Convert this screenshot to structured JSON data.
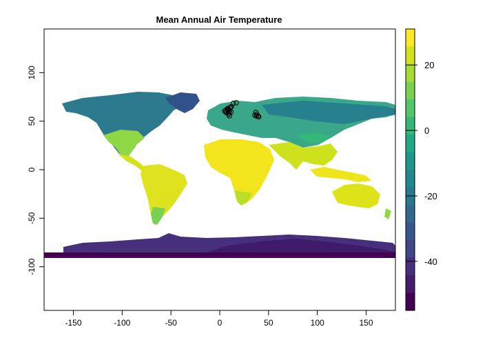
{
  "title": "Mean Annual Air Temperature",
  "map": {
    "xlim": [
      -180,
      180
    ],
    "ylim": [
      -145,
      145
    ],
    "x_ticks": [
      {
        "value": -150,
        "label": "-150"
      },
      {
        "value": -100,
        "label": "-100"
      },
      {
        "value": -50,
        "label": "-50"
      },
      {
        "value": 0,
        "label": "0"
      },
      {
        "value": 50,
        "label": "50"
      },
      {
        "value": 100,
        "label": "100"
      },
      {
        "value": 150,
        "label": "150"
      }
    ],
    "y_ticks": [
      {
        "value": 100,
        "label": "100"
      },
      {
        "value": 50,
        "label": "50"
      },
      {
        "value": 0,
        "label": "0"
      },
      {
        "value": -50,
        "label": "-50"
      },
      {
        "value": -100,
        "label": "-100"
      }
    ],
    "raster_extent": {
      "lon": [
        -180,
        180
      ],
      "lat": [
        -90,
        84
      ]
    },
    "points": [
      {
        "lon": 5.0,
        "lat": 60.5
      },
      {
        "lon": 6.0,
        "lat": 61.0
      },
      {
        "lon": 7.0,
        "lat": 60.0
      },
      {
        "lon": 8.0,
        "lat": 61.5
      },
      {
        "lon": 9.0,
        "lat": 62.0
      },
      {
        "lon": 10.0,
        "lat": 60.5
      },
      {
        "lon": 6.5,
        "lat": 59.0
      },
      {
        "lon": 8.5,
        "lat": 63.0
      },
      {
        "lon": 10.5,
        "lat": 63.5
      },
      {
        "lon": 9.5,
        "lat": 58.5
      },
      {
        "lon": 10.0,
        "lat": 55.5
      },
      {
        "lon": 7.5,
        "lat": 62.5
      },
      {
        "lon": 11.0,
        "lat": 64.5
      },
      {
        "lon": 12.0,
        "lat": 65.0
      },
      {
        "lon": 9.0,
        "lat": 57.0
      },
      {
        "lon": 11.5,
        "lat": 59.5
      },
      {
        "lon": 14.0,
        "lat": 68.5
      },
      {
        "lon": 17.0,
        "lat": 69.0
      },
      {
        "lon": 36.0,
        "lat": 56.0
      },
      {
        "lon": 37.5,
        "lat": 55.5
      },
      {
        "lon": 38.0,
        "lat": 57.0
      },
      {
        "lon": 39.0,
        "lat": 55.0
      },
      {
        "lon": 40.0,
        "lat": 54.5
      },
      {
        "lon": 37.0,
        "lat": 59.0
      }
    ]
  },
  "legend": {
    "range": [
      -55,
      31
    ],
    "ticks": [
      {
        "value": 20,
        "label": "20"
      },
      {
        "value": 0,
        "label": "0"
      },
      {
        "value": -20,
        "label": "-20"
      },
      {
        "value": -40,
        "label": "-40"
      }
    ],
    "colors": [
      "#440154",
      "#481a6c",
      "#472f7d",
      "#414487",
      "#39568c",
      "#31688e",
      "#2a788e",
      "#23888e",
      "#1f988b",
      "#22a884",
      "#35b779",
      "#54c568",
      "#7ad151",
      "#a5db36",
      "#d2e21b",
      "#fde725"
    ]
  }
}
